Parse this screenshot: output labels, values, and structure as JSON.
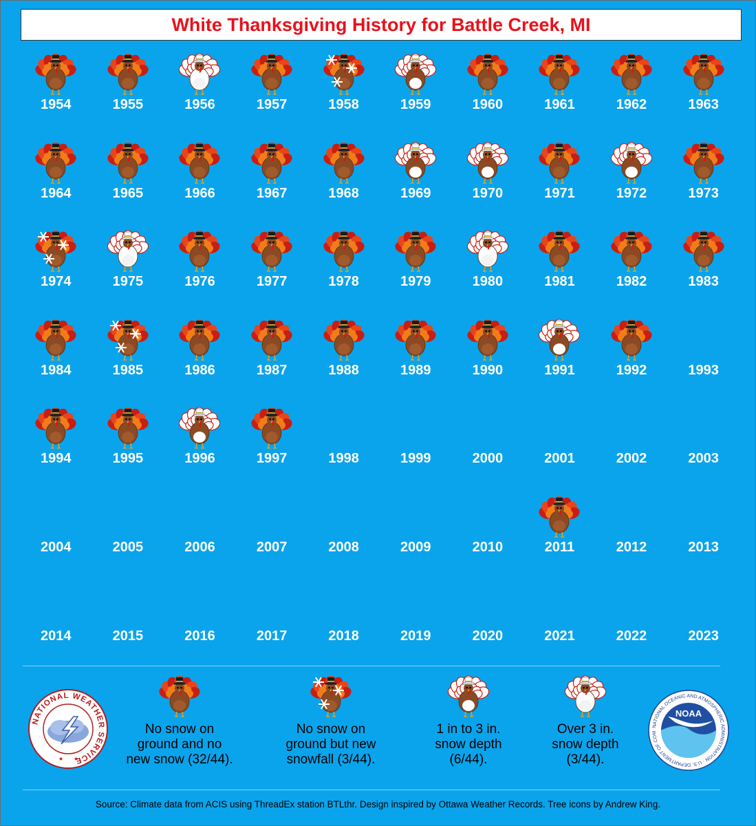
{
  "title": "White Thanksgiving History for Battle Creek, MI",
  "years": [
    {
      "year": "1954",
      "cat": "none"
    },
    {
      "year": "1955",
      "cat": "none"
    },
    {
      "year": "1956",
      "cat": "deep"
    },
    {
      "year": "1957",
      "cat": "none"
    },
    {
      "year": "1958",
      "cat": "newsnow"
    },
    {
      "year": "1959",
      "cat": "light"
    },
    {
      "year": "1960",
      "cat": "none"
    },
    {
      "year": "1961",
      "cat": "none"
    },
    {
      "year": "1962",
      "cat": "none"
    },
    {
      "year": "1963",
      "cat": "none"
    },
    {
      "year": "1964",
      "cat": "none"
    },
    {
      "year": "1965",
      "cat": "none"
    },
    {
      "year": "1966",
      "cat": "none"
    },
    {
      "year": "1967",
      "cat": "none"
    },
    {
      "year": "1968",
      "cat": "none"
    },
    {
      "year": "1969",
      "cat": "light"
    },
    {
      "year": "1970",
      "cat": "light"
    },
    {
      "year": "1971",
      "cat": "none"
    },
    {
      "year": "1972",
      "cat": "light"
    },
    {
      "year": "1973",
      "cat": "none"
    },
    {
      "year": "1974",
      "cat": "newsnow"
    },
    {
      "year": "1975",
      "cat": "deep"
    },
    {
      "year": "1976",
      "cat": "none"
    },
    {
      "year": "1977",
      "cat": "none"
    },
    {
      "year": "1978",
      "cat": "none"
    },
    {
      "year": "1979",
      "cat": "none"
    },
    {
      "year": "1980",
      "cat": "deep"
    },
    {
      "year": "1981",
      "cat": "none"
    },
    {
      "year": "1982",
      "cat": "none"
    },
    {
      "year": "1983",
      "cat": "none"
    },
    {
      "year": "1984",
      "cat": "none"
    },
    {
      "year": "1985",
      "cat": "newsnow"
    },
    {
      "year": "1986",
      "cat": "none"
    },
    {
      "year": "1987",
      "cat": "none"
    },
    {
      "year": "1988",
      "cat": "none"
    },
    {
      "year": "1989",
      "cat": "none"
    },
    {
      "year": "1990",
      "cat": "none"
    },
    {
      "year": "1991",
      "cat": "light"
    },
    {
      "year": "1992",
      "cat": "none"
    },
    {
      "year": "1993",
      "cat": ""
    },
    {
      "year": "1994",
      "cat": "none"
    },
    {
      "year": "1995",
      "cat": "none"
    },
    {
      "year": "1996",
      "cat": "light"
    },
    {
      "year": "1997",
      "cat": "none"
    },
    {
      "year": "1998",
      "cat": ""
    },
    {
      "year": "1999",
      "cat": ""
    },
    {
      "year": "2000",
      "cat": ""
    },
    {
      "year": "2001",
      "cat": ""
    },
    {
      "year": "2002",
      "cat": ""
    },
    {
      "year": "2003",
      "cat": ""
    },
    {
      "year": "2004",
      "cat": ""
    },
    {
      "year": "2005",
      "cat": ""
    },
    {
      "year": "2006",
      "cat": ""
    },
    {
      "year": "2007",
      "cat": ""
    },
    {
      "year": "2008",
      "cat": ""
    },
    {
      "year": "2009",
      "cat": ""
    },
    {
      "year": "2010",
      "cat": ""
    },
    {
      "year": "2011",
      "cat": "none"
    },
    {
      "year": "2012",
      "cat": ""
    },
    {
      "year": "2013",
      "cat": ""
    },
    {
      "year": "2014",
      "cat": ""
    },
    {
      "year": "2015",
      "cat": ""
    },
    {
      "year": "2016",
      "cat": ""
    },
    {
      "year": "2017",
      "cat": ""
    },
    {
      "year": "2018",
      "cat": ""
    },
    {
      "year": "2019",
      "cat": ""
    },
    {
      "year": "2020",
      "cat": ""
    },
    {
      "year": "2021",
      "cat": ""
    },
    {
      "year": "2022",
      "cat": ""
    },
    {
      "year": "2023",
      "cat": ""
    }
  ],
  "legend": [
    {
      "cat": "none",
      "text": "No snow on\nground and no\nnew snow (32/44)."
    },
    {
      "cat": "newsnow",
      "text": "No snow on\nground but new\nsnowfall (3/44)."
    },
    {
      "cat": "light",
      "text": "1 in to 3 in.\nsnow depth\n(6/44)."
    },
    {
      "cat": "deep",
      "text": "Over 3 in.\nsnow depth\n(3/44)."
    }
  ],
  "nws_logo_text": "NATIONAL WEATHER SERVICE",
  "noaa_logo_text": "NATIONAL OCEANIC AND ATMOSPHERIC ADMINISTRATION · U.S. DEPARTMENT OF COMMERCE",
  "noaa_label": "NOAA",
  "source": "Source: Climate data from ACIS using ThreadEx station BTLthr. Design inspired by Ottawa Weather Records. Tree icons by Andrew King.",
  "colors": {
    "background": "#0aa4ec",
    "title": "#e8121b",
    "year_text": "#ffffff"
  }
}
